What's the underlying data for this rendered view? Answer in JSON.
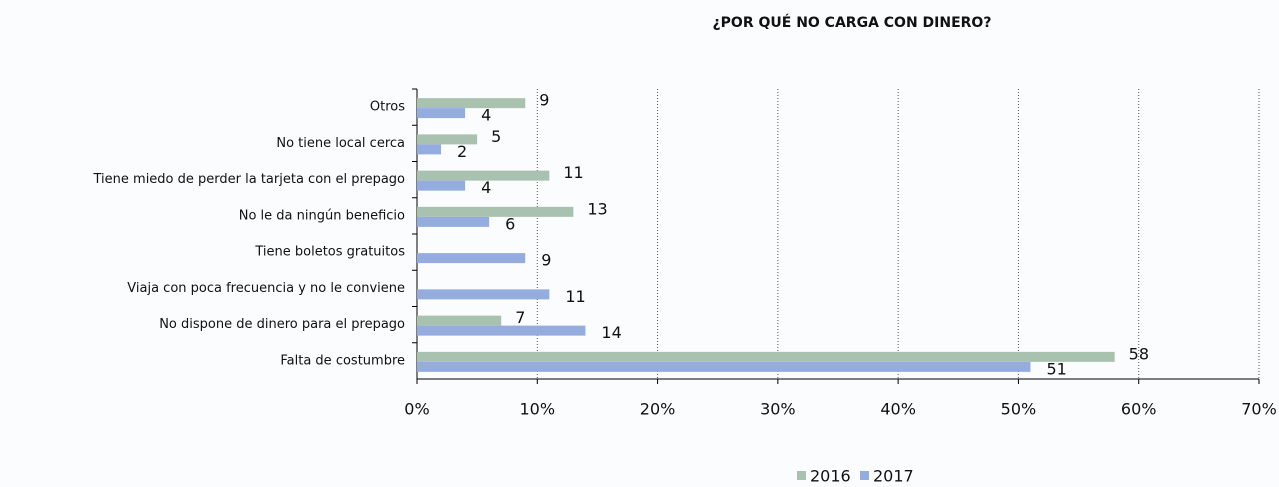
{
  "chart_data": {
    "type": "hbar",
    "title": "¿POR QUÉ NO CARGA CON DINERO?",
    "categories": [
      "Otros",
      "No tiene local cerca",
      "Tiene miedo de perder la tarjeta con el prepago",
      "No le da ningún beneficio",
      "Tiene boletos gratuitos",
      "Viaja con poca frecuencia y no le conviene",
      "No dispone de dinero para el prepago",
      "Falta de costumbre"
    ],
    "series": [
      {
        "name": "2016",
        "color": "#a9c2b0",
        "values": [
          9,
          5,
          11,
          13,
          null,
          null,
          7,
          58
        ]
      },
      {
        "name": "2017",
        "color": "#95acde",
        "values": [
          4,
          2,
          4,
          6,
          9,
          11,
          14,
          51
        ]
      }
    ],
    "xlim": [
      0,
      70
    ],
    "xticks": [
      {
        "value": 0,
        "label": "0%"
      },
      {
        "value": 10,
        "label": "10%"
      },
      {
        "value": 20,
        "label": "20%"
      },
      {
        "value": 30,
        "label": "30%"
      },
      {
        "value": 40,
        "label": "40%"
      },
      {
        "value": 50,
        "label": "50%"
      },
      {
        "value": 60,
        "label": "60%"
      },
      {
        "value": 70,
        "label": "70%"
      }
    ],
    "grid": true,
    "legend": "bottom"
  }
}
